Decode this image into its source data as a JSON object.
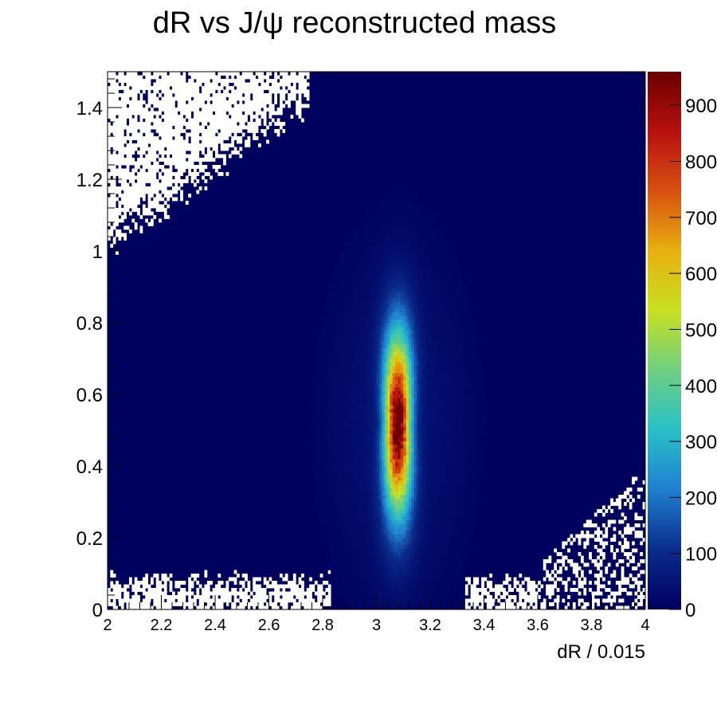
{
  "chart_data": {
    "type": "heatmap",
    "title": "dR vs J/ψ reconstructed mass",
    "xlabel": "dR / 0.015",
    "ylabel": "",
    "xlim": [
      2,
      4
    ],
    "ylim": [
      0,
      1.5
    ],
    "x_ticks": [
      "2",
      "2.2",
      "2.4",
      "2.6",
      "2.8",
      "3",
      "3.2",
      "3.4",
      "3.6",
      "3.8",
      "4"
    ],
    "y_ticks": [
      "0",
      "0.2",
      "0.4",
      "0.6",
      "0.8",
      "1",
      "1.2",
      "1.4"
    ],
    "colorbar_range": [
      0,
      960
    ],
    "colorbar_ticks": [
      "0",
      "100",
      "200",
      "300",
      "400",
      "500",
      "600",
      "700",
      "800",
      "900"
    ],
    "colorscale": [
      "#00005e",
      "#0a2c8c",
      "#1f7fd0",
      "#29c0c8",
      "#6ed080",
      "#c8e020",
      "#e8b010",
      "#d85010",
      "#b81010",
      "#6a0000"
    ],
    "peak": {
      "x": 3.08,
      "y": 0.52,
      "max_count": 950
    },
    "bins": {
      "x": 200,
      "y": 150
    },
    "empty_regions": [
      "upper-left",
      "bottom edge",
      "lower-right"
    ]
  }
}
